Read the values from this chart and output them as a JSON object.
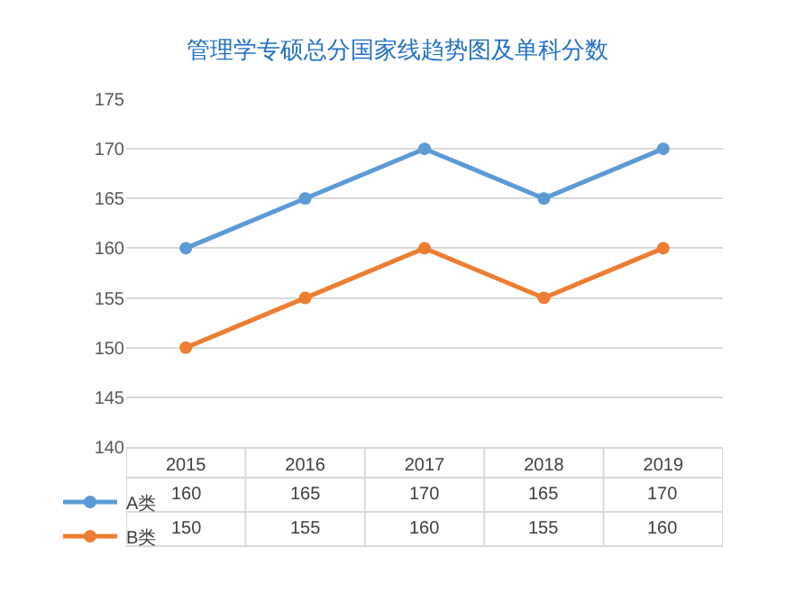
{
  "chart_data": {
    "type": "line",
    "title": "管理学专硕总分国家线趋势图及单科分数",
    "categories": [
      "2015",
      "2016",
      "2017",
      "2018",
      "2019"
    ],
    "series": [
      {
        "name": "A类",
        "color": "#5b9bd5",
        "values": [
          160,
          165,
          170,
          165,
          170
        ]
      },
      {
        "name": "B类",
        "color": "#ed7d31",
        "values": [
          150,
          155,
          160,
          155,
          160
        ]
      }
    ],
    "ylim": [
      140,
      175
    ],
    "yticks": [
      140,
      145,
      150,
      155,
      160,
      165,
      170,
      175
    ],
    "grid": "y",
    "legend": "bottom",
    "marker": "circle",
    "line_style": "solid",
    "data_labels": true
  }
}
